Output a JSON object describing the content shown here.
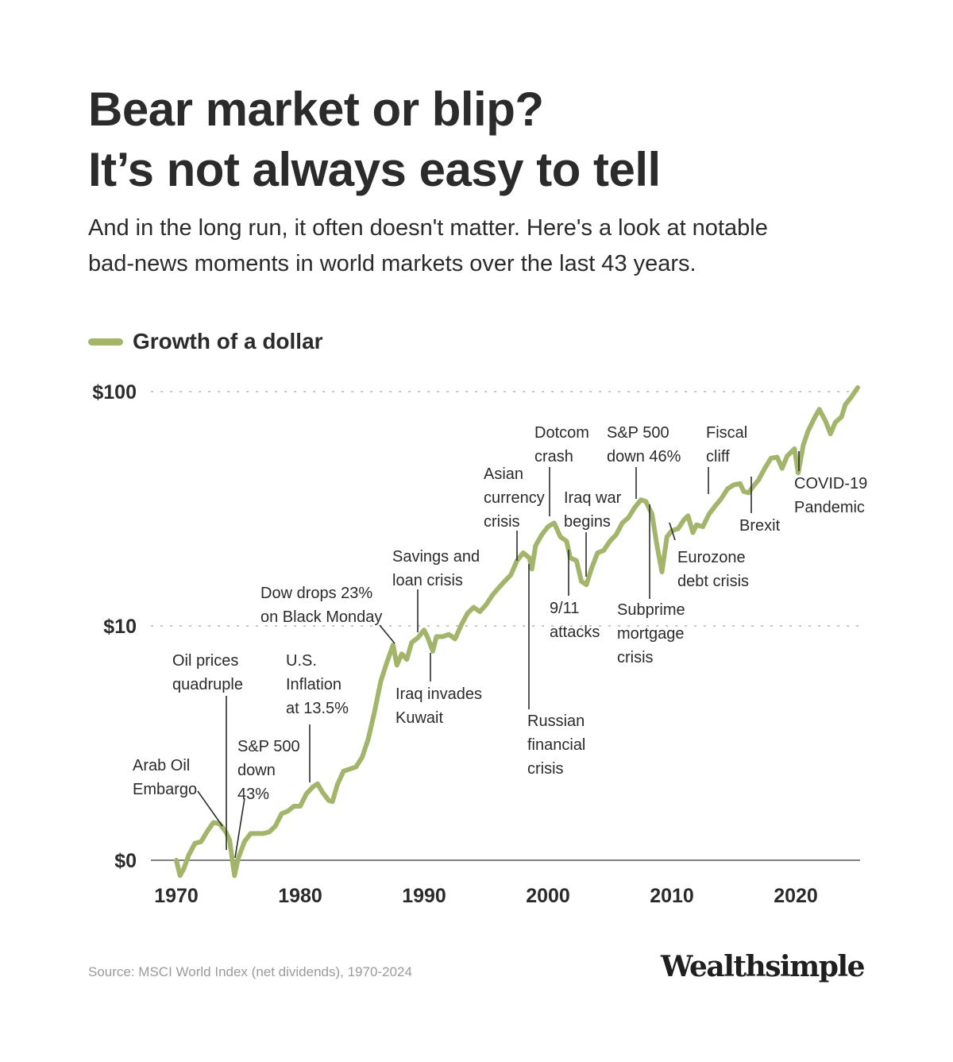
{
  "title_line1": "Bear market or blip?",
  "title_line2": "It’s not always easy to tell",
  "subtitle_line1": "And in the long run, it often doesn't matter. Here's a look at notable",
  "subtitle_line2": "bad-news moments in world markets over the last 43 years.",
  "source": "Source: MSCI World Index (net dividends), 1970-2024",
  "logo": "Wealthsimple",
  "colors": {
    "line": "#a3b56a",
    "text": "#2b2b2b",
    "grid": "#b5b5b5"
  },
  "chart_data": {
    "type": "line",
    "y_scale": "log",
    "y_ticks": [
      {
        "label": "$100",
        "value": 100
      },
      {
        "label": "$10",
        "value": 10
      },
      {
        "label": "$0",
        "value": 1
      }
    ],
    "x_ticks": [
      1970,
      1980,
      1990,
      2000,
      2010,
      2020
    ],
    "xlim": [
      1970,
      2025
    ],
    "grid": "dotted horizontal",
    "legend": {
      "position": "top-left",
      "label": "Growth of a dollar"
    },
    "series": [
      {
        "name": "Growth of a dollar",
        "points": [
          [
            1970.0,
            1.0
          ],
          [
            1970.3,
            0.86
          ],
          [
            1970.6,
            0.92
          ],
          [
            1971.0,
            1.05
          ],
          [
            1971.5,
            1.18
          ],
          [
            1972.0,
            1.2
          ],
          [
            1972.5,
            1.33
          ],
          [
            1973.0,
            1.45
          ],
          [
            1973.5,
            1.43
          ],
          [
            1974.0,
            1.32
          ],
          [
            1974.3,
            1.22
          ],
          [
            1974.7,
            0.86
          ],
          [
            1975.0,
            1.02
          ],
          [
            1975.5,
            1.2
          ],
          [
            1976.0,
            1.3
          ],
          [
            1976.5,
            1.3
          ],
          [
            1977.0,
            1.3
          ],
          [
            1977.5,
            1.32
          ],
          [
            1978.0,
            1.4
          ],
          [
            1978.5,
            1.58
          ],
          [
            1979.0,
            1.62
          ],
          [
            1979.5,
            1.7
          ],
          [
            1980.0,
            1.7
          ],
          [
            1980.5,
            1.92
          ],
          [
            1981.0,
            2.05
          ],
          [
            1981.4,
            2.12
          ],
          [
            1981.8,
            1.95
          ],
          [
            1982.3,
            1.8
          ],
          [
            1982.6,
            1.78
          ],
          [
            1983.0,
            2.1
          ],
          [
            1983.5,
            2.4
          ],
          [
            1984.0,
            2.45
          ],
          [
            1984.5,
            2.5
          ],
          [
            1985.0,
            2.75
          ],
          [
            1985.5,
            3.3
          ],
          [
            1986.0,
            4.3
          ],
          [
            1986.5,
            5.8
          ],
          [
            1987.0,
            7.0
          ],
          [
            1987.5,
            8.3
          ],
          [
            1987.8,
            6.8
          ],
          [
            1988.2,
            7.6
          ],
          [
            1988.6,
            7.2
          ],
          [
            1989.0,
            8.5
          ],
          [
            1989.5,
            8.9
          ],
          [
            1990.0,
            9.6
          ],
          [
            1990.3,
            8.9
          ],
          [
            1990.7,
            7.8
          ],
          [
            1991.0,
            9.0
          ],
          [
            1991.5,
            9.0
          ],
          [
            1992.0,
            9.2
          ],
          [
            1992.5,
            8.8
          ],
          [
            1993.0,
            10.1
          ],
          [
            1993.5,
            11.3
          ],
          [
            1994.0,
            12.0
          ],
          [
            1994.5,
            11.5
          ],
          [
            1995.0,
            12.3
          ],
          [
            1995.5,
            13.5
          ],
          [
            1996.0,
            14.5
          ],
          [
            1996.5,
            15.5
          ],
          [
            1997.0,
            16.5
          ],
          [
            1997.5,
            19.0
          ],
          [
            1998.0,
            20.5
          ],
          [
            1998.5,
            19.5
          ],
          [
            1998.7,
            17.5
          ],
          [
            1999.0,
            22.0
          ],
          [
            1999.5,
            24.5
          ],
          [
            2000.0,
            26.5
          ],
          [
            2000.5,
            27.5
          ],
          [
            2001.0,
            24.0
          ],
          [
            2001.5,
            23.0
          ],
          [
            2001.8,
            19.5
          ],
          [
            2002.3,
            19.0
          ],
          [
            2002.7,
            15.5
          ],
          [
            2003.1,
            15.0
          ],
          [
            2003.5,
            17.5
          ],
          [
            2004.0,
            20.5
          ],
          [
            2004.5,
            21.0
          ],
          [
            2005.0,
            23.0
          ],
          [
            2005.5,
            24.5
          ],
          [
            2006.0,
            27.5
          ],
          [
            2006.5,
            29.0
          ],
          [
            2007.0,
            32.0
          ],
          [
            2007.5,
            34.5
          ],
          [
            2007.9,
            34.0
          ],
          [
            2008.4,
            30.0
          ],
          [
            2008.8,
            22.0
          ],
          [
            2009.2,
            17.0
          ],
          [
            2009.6,
            24.0
          ],
          [
            2010.0,
            25.5
          ],
          [
            2010.5,
            26.0
          ],
          [
            2011.0,
            28.5
          ],
          [
            2011.3,
            29.5
          ],
          [
            2011.7,
            25.0
          ],
          [
            2012.0,
            27.0
          ],
          [
            2012.5,
            26.5
          ],
          [
            2013.0,
            30.0
          ],
          [
            2013.5,
            32.5
          ],
          [
            2014.0,
            35.0
          ],
          [
            2014.5,
            38.5
          ],
          [
            2015.0,
            40.0
          ],
          [
            2015.5,
            40.5
          ],
          [
            2015.8,
            37.5
          ],
          [
            2016.2,
            37.0
          ],
          [
            2016.5,
            39.0
          ],
          [
            2017.0,
            42.0
          ],
          [
            2017.5,
            47.0
          ],
          [
            2018.0,
            52.0
          ],
          [
            2018.5,
            52.5
          ],
          [
            2018.9,
            47.0
          ],
          [
            2019.3,
            53.0
          ],
          [
            2019.9,
            57.0
          ],
          [
            2020.2,
            45.0
          ],
          [
            2020.6,
            59.0
          ],
          [
            2021.0,
            68.0
          ],
          [
            2021.5,
            77.0
          ],
          [
            2021.9,
            84.0
          ],
          [
            2022.4,
            75.0
          ],
          [
            2022.8,
            66.0
          ],
          [
            2023.2,
            74.0
          ],
          [
            2023.7,
            78.0
          ],
          [
            2024.0,
            88.0
          ],
          [
            2024.5,
            95.0
          ],
          [
            2025.0,
            104.0
          ]
        ]
      }
    ],
    "annotations": [
      {
        "lines": [
          "Arab Oil",
          "Embargo"
        ],
        "x": 1973.8
      },
      {
        "lines": [
          "Oil prices",
          "quadruple"
        ],
        "x": 1974.0
      },
      {
        "lines": [
          "S&P 500",
          "down",
          "43%"
        ],
        "x": 1974.7
      },
      {
        "lines": [
          "U.S.",
          "Inflation",
          "at 13.5%"
        ],
        "x": 1981.0
      },
      {
        "lines": [
          "Dow drops 23%",
          "on Black Monday"
        ],
        "x": 1987.8
      },
      {
        "lines": [
          "Savings and",
          "loan crisis"
        ],
        "x": 1989.8
      },
      {
        "lines": [
          "Iraq invades",
          "Kuwait"
        ],
        "x": 1990.7
      },
      {
        "lines": [
          "Asian",
          "currency",
          "crisis"
        ],
        "x": 1997.6
      },
      {
        "lines": [
          "Russian",
          "financial",
          "crisis"
        ],
        "x": 1998.6
      },
      {
        "lines": [
          "Dotcom",
          "crash"
        ],
        "x": 2000.3
      },
      {
        "lines": [
          "9/11",
          "attacks"
        ],
        "x": 2001.8
      },
      {
        "lines": [
          "Iraq war",
          "begins"
        ],
        "x": 2003.1
      },
      {
        "lines": [
          "S&P 500",
          "down 46%"
        ],
        "x": 2007.5
      },
      {
        "lines": [
          "Subprime",
          "mortgage",
          "crisis"
        ],
        "x": 2008.4
      },
      {
        "lines": [
          "Eurozone",
          "debt crisis"
        ],
        "x": 2010.5
      },
      {
        "lines": [
          "Fiscal",
          "cliff"
        ],
        "x": 2013.0
      },
      {
        "lines": [
          "Brexit"
        ],
        "x": 2016.5
      },
      {
        "lines": [
          "COVID-19",
          "Pandemic"
        ],
        "x": 2020.2
      }
    ]
  }
}
